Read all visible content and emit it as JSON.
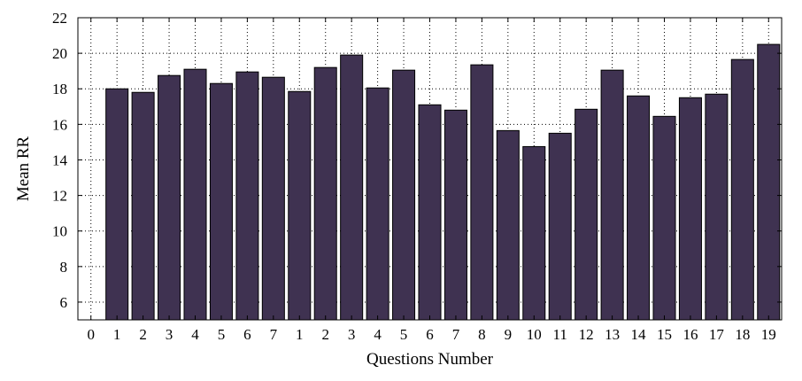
{
  "chart_data": {
    "type": "bar",
    "title": "",
    "xlabel": "Questions Number",
    "ylabel": "Mean RR",
    "categories": [
      "0",
      "1",
      "2",
      "3",
      "4",
      "5",
      "6",
      "7",
      "1",
      "2",
      "3",
      "4",
      "5",
      "6",
      "7",
      "8",
      "9",
      "10",
      "11",
      "12",
      "13",
      "14",
      "15",
      "16",
      "17",
      "18",
      "19"
    ],
    "values": [
      null,
      18.0,
      17.8,
      18.75,
      19.1,
      18.3,
      18.95,
      18.65,
      17.85,
      19.2,
      19.9,
      18.05,
      19.05,
      17.1,
      16.8,
      19.35,
      15.65,
      14.75,
      15.5,
      16.85,
      19.05,
      17.6,
      16.45,
      17.5,
      17.7,
      19.65,
      20.5
    ],
    "ylim": [
      5,
      22
    ],
    "yticks": [
      6,
      8,
      10,
      12,
      14,
      16,
      18,
      20,
      22
    ],
    "grid": true,
    "bar_color": "#3f3251"
  }
}
